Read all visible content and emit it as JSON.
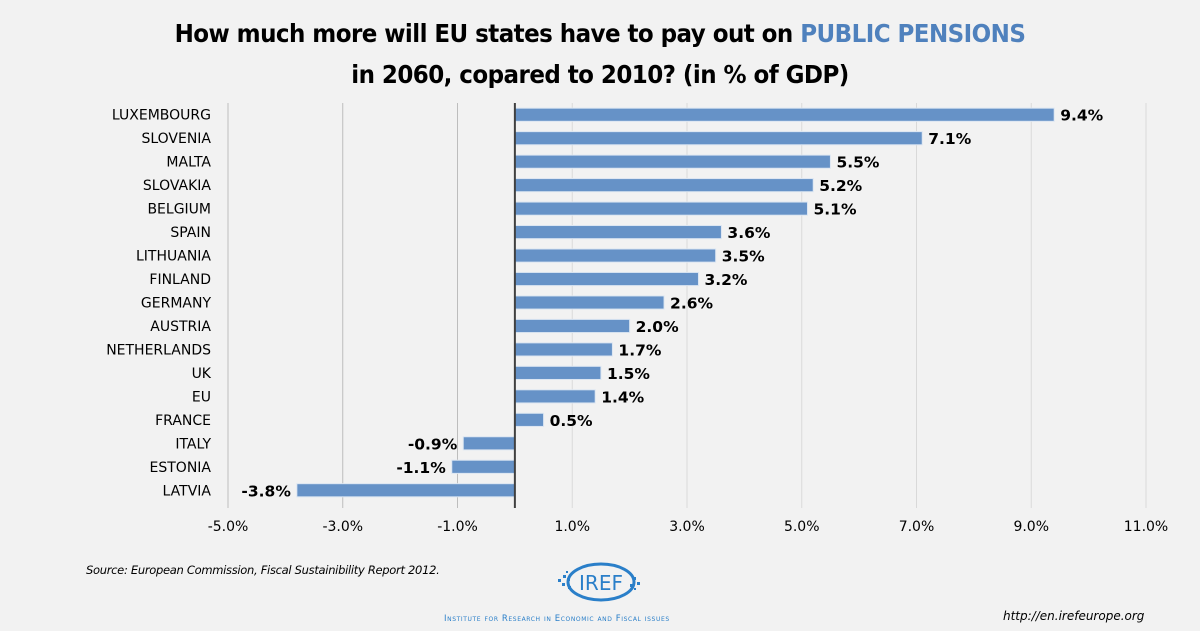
{
  "title": {
    "line1_prefix": "How much more will EU states have to pay out on ",
    "line1_highlight": "PUBLIC PENSIONS",
    "line2": "in 2060, copared to 2010? (in % of GDP)"
  },
  "colors": {
    "bar": "#6692c7",
    "highlight": "#4f81bd",
    "background": "#f2f2f2",
    "logo": "#2a7fc9"
  },
  "chart_data": {
    "type": "bar",
    "orientation": "horizontal",
    "title": "How much more will EU states have to pay out on PUBLIC PENSIONS in 2060, copared to 2010? (in % of GDP)",
    "xlabel": "",
    "ylabel": "",
    "categories": [
      "LUXEMBOURG",
      "SLOVENIA",
      "MALTA",
      "SLOVAKIA",
      "BELGIUM",
      "SPAIN",
      "LITHUANIA",
      "FINLAND",
      "GERMANY",
      "AUSTRIA",
      "NETHERLANDS",
      "UK",
      "EU",
      "FRANCE",
      "ITALY",
      "ESTONIA",
      "LATVIA"
    ],
    "values": [
      9.4,
      7.1,
      5.5,
      5.2,
      5.1,
      3.6,
      3.5,
      3.2,
      2.6,
      2.0,
      1.7,
      1.5,
      1.4,
      0.5,
      -0.9,
      -1.1,
      -3.8
    ],
    "data_labels": [
      "9.4%",
      "7.1%",
      "5.5%",
      "5.2%",
      "5.1%",
      "3.6%",
      "3.5%",
      "3.2%",
      "2.6%",
      "2.0%",
      "1.7%",
      "1.5%",
      "1.4%",
      "0.5%",
      "-0.9%",
      "-1.1%",
      "-3.8%"
    ],
    "xlim": [
      -5.0,
      11.0
    ],
    "xticks": [
      -5,
      -3,
      -1,
      1,
      3,
      5,
      7,
      9,
      11
    ],
    "xtick_labels": [
      "-5.0%",
      "-3.0%",
      "-1.0%",
      "1.0%",
      "3.0%",
      "5.0%",
      "7.0%",
      "9.0%",
      "11.0%"
    ],
    "grid": "vertical",
    "legend": "none"
  },
  "footer": {
    "source": "Source: European Commission, Fiscal Sustainibility Report 2012.",
    "logo_text": "IREF",
    "institute": "Institute for Research in Economic and Fiscal issues",
    "url": "http://en.irefeurope.org"
  }
}
